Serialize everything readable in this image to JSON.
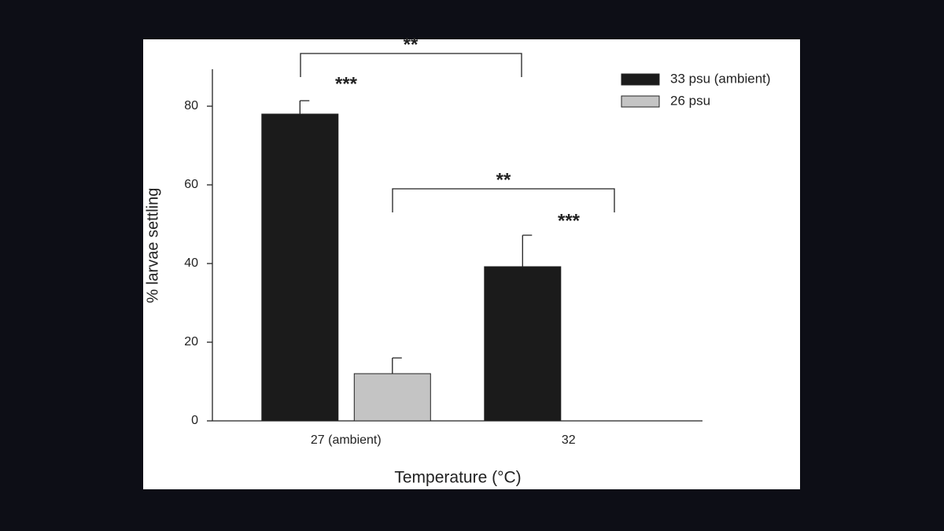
{
  "chart_data": {
    "type": "bar",
    "x_label": "Temperature (°C)",
    "y_label": "% larvae settling",
    "categories": [
      "27 (ambient)",
      "32"
    ],
    "series": [
      {
        "name": "33 psu (ambient)",
        "color": "#1b1b1b",
        "values": [
          78,
          39.2
        ],
        "errors": [
          3.4,
          8
        ]
      },
      {
        "name": "26 psu",
        "color": "#c4c4c4",
        "values": [
          12,
          null
        ],
        "errors": [
          4,
          null
        ]
      }
    ],
    "ylim": [
      0,
      90
    ],
    "yticks": [
      0,
      20,
      40,
      60,
      80
    ],
    "legend": "upper right",
    "annotations": [
      "**",
      "***",
      "**",
      "***"
    ]
  }
}
